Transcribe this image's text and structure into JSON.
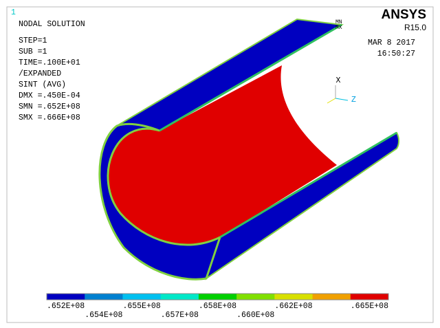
{
  "window_number": "1",
  "info": [
    "NODAL SOLUTION",
    "STEP=1",
    "SUB =1",
    "TIME=.100E+01",
    "/EXPANDED",
    "SINT     (AVG)",
    "DMX =.450E-04",
    "SMN =.652E+08",
    "SMX =.666E+08"
  ],
  "brand": {
    "name": "ANSYS",
    "version": "R15.0"
  },
  "date": "MAR  8 2017",
  "time": "16:50:27",
  "markers": {
    "min": "MN",
    "max": "MX"
  },
  "triad": {
    "x": "X",
    "z": "Z"
  },
  "legend": {
    "colors": [
      "#0000c0",
      "#0080d0",
      "#00c0f0",
      "#00e8c8",
      "#00d000",
      "#80e000",
      "#d8e000",
      "#f0a000",
      "#e00000"
    ],
    "labels_top": [
      ".652E+08",
      ".655E+08",
      ".658E+08",
      ".662E+08",
      ".665E+08"
    ],
    "labels_bottom": [
      ".654E+08",
      ".657E+08",
      ".660E+08"
    ]
  }
}
